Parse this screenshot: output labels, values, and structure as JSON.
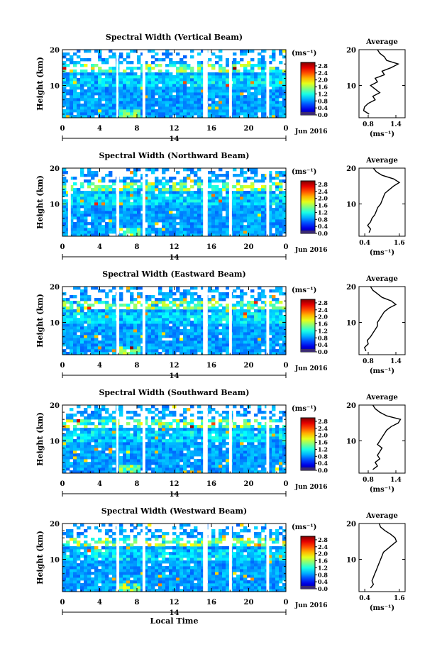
{
  "figure": {
    "xlabel": "Local Time",
    "unit_label": "(ms⁻¹)",
    "average_label": "Average",
    "date_label": "Jun 2016",
    "day_label": "14",
    "height_label": "Height (km)"
  },
  "chart_data": [
    {
      "type": "heatmap",
      "title": "Spectral Width (Vertical Beam)",
      "x_ticks": [
        "0",
        "4",
        "8",
        "12",
        "16",
        "20",
        "0"
      ],
      "xlim": [
        0,
        24
      ],
      "y_ticks": [
        "20",
        "10"
      ],
      "ylim": [
        1,
        20
      ],
      "gaps_hours": [
        [
          5.8,
          6.0
        ],
        [
          8.6,
          8.9
        ],
        [
          15.1,
          15.6
        ],
        [
          17.9,
          18.2
        ],
        [
          21.9,
          22.2
        ]
      ],
      "colorbar_ticks": [
        "2.8",
        "2.4",
        "2.0",
        "1.6",
        "1.2",
        "0.8",
        "0.4",
        "0.0"
      ],
      "colorbar_range": [
        0,
        3.0
      ],
      "avg_x_ticks": [
        "0.8",
        "1.4"
      ],
      "avg_xlim": [
        0.6,
        1.6
      ],
      "avg_y_ticks": [
        "20",
        "10"
      ],
      "avg_profile": {
        "height": [
          2,
          3,
          4,
          5,
          6,
          7,
          8,
          9,
          10,
          11,
          12,
          13,
          14,
          15,
          16,
          17,
          18,
          19,
          20
        ],
        "value": [
          0.82,
          0.7,
          0.72,
          0.8,
          0.95,
          0.9,
          1.05,
          0.95,
          0.85,
          1.0,
          0.95,
          1.15,
          1.1,
          1.3,
          1.45,
          1.2,
          1.15,
          1.05,
          1.0
        ]
      }
    },
    {
      "type": "heatmap",
      "title": "Spectral Width (Northward Beam)",
      "x_ticks": [
        "0",
        "4",
        "8",
        "12",
        "16",
        "20",
        "0"
      ],
      "xlim": [
        0,
        24
      ],
      "y_ticks": [
        "20",
        "10"
      ],
      "ylim": [
        1,
        20
      ],
      "gaps_hours": [
        [
          0.6,
          0.9
        ],
        [
          5.8,
          6.1
        ],
        [
          8.6,
          8.9
        ],
        [
          15.1,
          15.6
        ],
        [
          17.9,
          18.2
        ],
        [
          21.9,
          22.2
        ]
      ],
      "colorbar_ticks": [
        "2.8",
        "2.4",
        "2.0",
        "1.6",
        "1.2",
        "0.8",
        "0.4",
        "0.0"
      ],
      "colorbar_range": [
        0,
        3.0
      ],
      "avg_x_ticks": [
        "0.4",
        "1.6"
      ],
      "avg_xlim": [
        0.2,
        1.8
      ],
      "avg_y_ticks": [
        "20",
        "10"
      ],
      "avg_profile": {
        "height": [
          2,
          3,
          4,
          5,
          6,
          7,
          8,
          9,
          10,
          11,
          12,
          13,
          14,
          15,
          16,
          17,
          18,
          19,
          20
        ],
        "value": [
          0.55,
          0.6,
          0.5,
          0.6,
          0.65,
          0.75,
          0.8,
          0.85,
          0.95,
          1.0,
          1.05,
          1.1,
          1.25,
          1.4,
          1.6,
          1.4,
          1.0,
          0.8,
          0.7
        ]
      }
    },
    {
      "type": "heatmap",
      "title": "Spectral Width (Eastward Beam)",
      "x_ticks": [
        "0",
        "4",
        "8",
        "12",
        "16",
        "20",
        "0"
      ],
      "xlim": [
        0,
        24
      ],
      "y_ticks": [
        "20",
        "10"
      ],
      "ylim": [
        1,
        20
      ],
      "gaps_hours": [
        [
          5.8,
          6.1
        ],
        [
          8.6,
          8.9
        ],
        [
          15.1,
          15.6
        ],
        [
          17.9,
          18.2
        ],
        [
          21.9,
          22.2
        ]
      ],
      "colorbar_ticks": [
        "2.8",
        "2.4",
        "2.0",
        "1.6",
        "1.2",
        "0.8",
        "0.4",
        "0.0"
      ],
      "colorbar_range": [
        0,
        3.0
      ],
      "avg_x_ticks": [
        "0.8",
        "1.4"
      ],
      "avg_xlim": [
        0.6,
        1.6
      ],
      "avg_y_ticks": [
        "20",
        "10"
      ],
      "avg_profile": {
        "height": [
          2,
          3,
          4,
          5,
          6,
          7,
          8,
          9,
          10,
          11,
          12,
          13,
          14,
          15,
          16,
          17,
          18,
          19,
          20
        ],
        "value": [
          0.75,
          0.72,
          0.8,
          0.78,
          0.85,
          0.9,
          0.95,
          1.0,
          1.0,
          1.05,
          1.1,
          1.15,
          1.25,
          1.4,
          1.3,
          1.1,
          1.0,
          0.9,
          0.85
        ]
      }
    },
    {
      "type": "heatmap",
      "title": "Spectral Width (Southward Beam)",
      "x_ticks": [
        "0",
        "4",
        "8",
        "12",
        "16",
        "20",
        "0"
      ],
      "xlim": [
        0,
        24
      ],
      "y_ticks": [
        "20",
        "10"
      ],
      "ylim": [
        1,
        20
      ],
      "gaps_hours": [
        [
          5.8,
          6.0
        ],
        [
          8.6,
          8.9
        ],
        [
          15.1,
          15.6
        ],
        [
          17.9,
          18.2
        ],
        [
          21.9,
          22.2
        ]
      ],
      "colorbar_ticks": [
        "2.8",
        "2.4",
        "2.0",
        "1.6",
        "1.2",
        "0.8",
        "0.4",
        "0.0"
      ],
      "colorbar_range": [
        0,
        3.0
      ],
      "avg_x_ticks": [
        "0.8",
        "1.4"
      ],
      "avg_xlim": [
        0.6,
        1.6
      ],
      "avg_y_ticks": [
        "20",
        "10"
      ],
      "avg_profile": {
        "height": [
          2,
          3,
          4,
          5,
          6,
          7,
          8,
          9,
          10,
          11,
          12,
          13,
          14,
          15,
          16,
          17,
          18,
          19,
          20
        ],
        "value": [
          0.9,
          1.0,
          0.95,
          1.05,
          1.0,
          1.05,
          1.1,
          1.0,
          1.05,
          1.1,
          1.15,
          1.2,
          1.3,
          1.45,
          1.5,
          1.2,
          1.05,
          0.95,
          0.9
        ]
      }
    },
    {
      "type": "heatmap",
      "title": "Spectral Width (Westward Beam)",
      "x_ticks": [
        "0",
        "4",
        "8",
        "12",
        "16",
        "20",
        "0"
      ],
      "xlim": [
        0,
        24
      ],
      "y_ticks": [
        "20",
        "10"
      ],
      "ylim": [
        1,
        20
      ],
      "gaps_hours": [
        [
          5.8,
          6.1
        ],
        [
          8.6,
          8.9
        ],
        [
          15.1,
          15.6
        ],
        [
          17.9,
          18.2
        ],
        [
          21.9,
          22.2
        ]
      ],
      "colorbar_ticks": [
        "2.8",
        "2.4",
        "2.0",
        "1.6",
        "1.2",
        "0.8",
        "0.4",
        "0.0"
      ],
      "colorbar_range": [
        0,
        3.0
      ],
      "avg_x_ticks": [
        "0.4",
        "1.6"
      ],
      "avg_xlim": [
        0.2,
        1.8
      ],
      "avg_y_ticks": [
        "20",
        "10"
      ],
      "avg_profile": {
        "height": [
          2,
          3,
          4,
          5,
          6,
          7,
          8,
          9,
          10,
          11,
          12,
          13,
          14,
          15,
          16,
          17,
          18,
          19,
          20
        ],
        "value": [
          0.6,
          0.7,
          0.65,
          0.7,
          0.75,
          0.8,
          0.85,
          0.9,
          0.95,
          1.0,
          1.05,
          1.2,
          1.35,
          1.5,
          1.45,
          1.3,
          1.1,
          0.95,
          0.9
        ]
      }
    }
  ]
}
